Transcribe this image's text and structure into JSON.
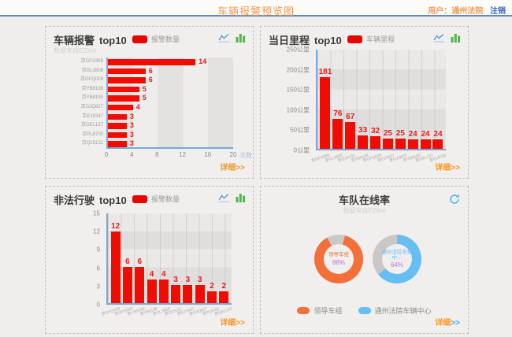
{
  "header": {
    "title": "车辆报警预览图",
    "user_label": "用户：通州法院",
    "logout_label": "注销"
  },
  "panels": {
    "alarm": {
      "title": "车辆报警",
      "suffix": "top10",
      "legend": "报警数量",
      "source": "数据来自EZlive",
      "unit": "次数",
      "detail": "详细",
      "arrows": ">>"
    },
    "mileage": {
      "title": "当日里程",
      "suffix": "top10",
      "legend": "车辆里程",
      "detail": "详细",
      "arrows": ">>"
    },
    "illegal": {
      "title": "非法行驶",
      "suffix": "top10",
      "legend": "报警数量",
      "detail": "详细",
      "arrows": ">>"
    },
    "online": {
      "title": "车队在线率",
      "source": "数据来自EZlive",
      "detail": "详细",
      "arrows": ">>",
      "legend_items": [
        "领导车组",
        "通州法院车辆中心"
      ]
    }
  },
  "colors": {
    "bar_red": "#f00c00",
    "value_red": "#e02020",
    "accent_orange": "#f7941d",
    "link_blue": "#3c6bbf",
    "donut_orange": "#f4703b",
    "donut_blue": "#66bef2",
    "donut_gray": "#c9c8c6",
    "pct_purple": "#b973d4",
    "axis_blue": "#74a9da"
  },
  "chart_data": [
    {
      "id": "alarm",
      "type": "bar",
      "orientation": "horizontal",
      "title": "车辆报警 top10",
      "legend": [
        "报警数量"
      ],
      "categories": [
        "京GFS399",
        "京GL3806",
        "京GFQ029",
        "京YB8198",
        "京YB8190",
        "京GJQ827",
        "京E19347",
        "京GEL137",
        "京PL8700",
        "京Q15131"
      ],
      "values": [
        14,
        6,
        6,
        5,
        5,
        4,
        3,
        3,
        3,
        3
      ],
      "xlabel": "次数",
      "xlim": [
        0,
        20
      ],
      "xticks": [
        0,
        4,
        8,
        12,
        16,
        20
      ],
      "bar_color": "#f00c00",
      "grid": "striped"
    },
    {
      "id": "mileage",
      "type": "bar",
      "orientation": "vertical",
      "title": "当日里程 top10",
      "legend": [
        "车辆里程"
      ],
      "categories": [
        "京GFS399",
        "京GL3806",
        "京Q15131",
        "京YB8198",
        "京GFQ029",
        "京E19347",
        "京GJQ827",
        "京YB8190",
        "京GEL137",
        "京PL8700"
      ],
      "values": [
        181,
        76,
        67,
        33,
        32,
        25,
        25,
        24,
        24,
        24
      ],
      "ylim": [
        0,
        250
      ],
      "yticks": [
        "250公里",
        "200公里",
        "150公里",
        "100公里",
        "50公里",
        "0公里"
      ],
      "bar_color": "#f00c00",
      "grid": "striped"
    },
    {
      "id": "illegal",
      "type": "bar",
      "orientation": "vertical",
      "title": "非法行驶 top10",
      "legend": [
        "报警数量"
      ],
      "categories": [
        "京GFQ029",
        "京GFS399",
        "京YB8190",
        "京YB8198",
        "京GL3806",
        "京Q15131",
        "京E19347",
        "京GJQ827",
        "京PL8700",
        "京GEL137"
      ],
      "values": [
        12,
        6,
        6,
        4,
        4,
        3,
        3,
        3,
        2,
        2
      ],
      "ylim": [
        0,
        15
      ],
      "yticks": [
        "15",
        "12",
        "9",
        "6",
        "3",
        "0"
      ],
      "bar_color": "#f00c00",
      "grid": "striped"
    },
    {
      "id": "online",
      "type": "pie",
      "title": "车队在线率",
      "donuts": [
        {
          "label": "领导车组",
          "pct": 88,
          "pct_text": "88%",
          "color": "#f4703b"
        },
        {
          "label": "通州法院车辆中…",
          "pct": 64,
          "pct_text": "64%",
          "color": "#66bef2"
        }
      ],
      "legend": [
        "领导车组",
        "通州法院车辆中心"
      ],
      "legend_position": "bottom"
    }
  ]
}
